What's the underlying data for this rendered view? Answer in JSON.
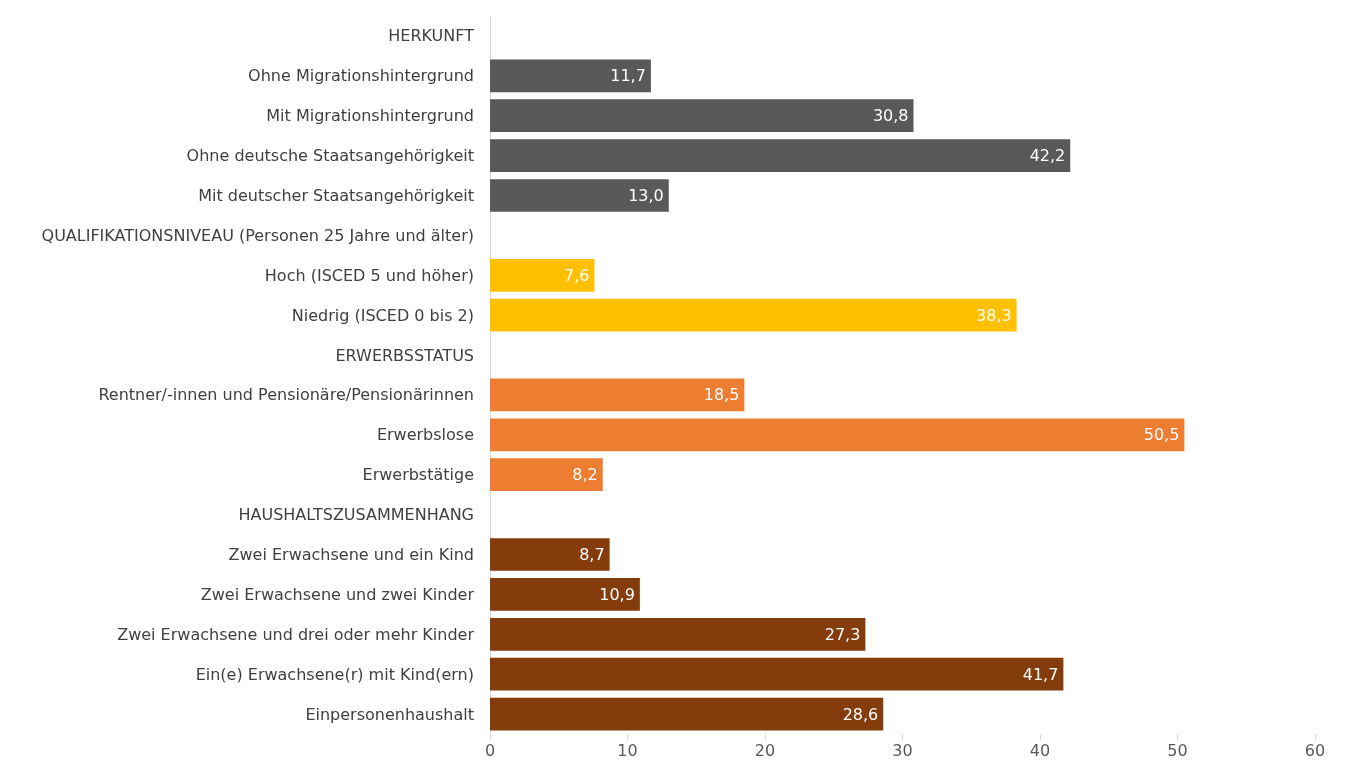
{
  "chart_data": {
    "type": "bar",
    "orientation": "horizontal",
    "categories": [
      "HERKUNFT",
      "Ohne Migrationshintergrund",
      "Mit Migrationshintergrund",
      "Ohne deutsche Staatsangehörigkeit",
      "Mit deutscher Staatsangehörigkeit",
      "QUALIFIKATIONSNIVEAU (Personen 25 Jahre und älter)",
      "Hoch (ISCED 5 und höher)",
      "Niedrig (ISCED 0 bis 2)",
      "ERWERBSSTATUS",
      "Rentner/-innen und Pensionäre/Pensionärinnen",
      "Erwerbslose",
      "Erwerbstätige",
      "HAUSHALTSZUSAMMENHANG",
      "Zwei Erwachsene und ein Kind",
      "Zwei Erwachsene und zwei Kinder",
      "Zwei Erwachsene und drei oder mehr Kinder",
      "Ein(e) Erwachsene(r) mit Kind(ern)",
      "Einpersonenhaushalt"
    ],
    "values": [
      null,
      11.7,
      30.8,
      42.2,
      13.0,
      null,
      7.6,
      38.3,
      null,
      18.5,
      50.5,
      8.2,
      null,
      8.7,
      10.9,
      27.3,
      41.7,
      28.6
    ],
    "value_labels": [
      null,
      "11,7",
      "30,8",
      "42,2",
      "13,0",
      null,
      "7,6",
      "38,3",
      null,
      "18,5",
      "50,5",
      "8,2",
      null,
      "8,7",
      "10,9",
      "27,3",
      "41,7",
      "28,6"
    ],
    "colors": [
      null,
      "#595959",
      "#595959",
      "#595959",
      "#595959",
      null,
      "#ffc000",
      "#ffc000",
      null,
      "#ed7d31",
      "#ed7d31",
      "#ed7d31",
      null,
      "#843c0c",
      "#843c0c",
      "#843c0c",
      "#843c0c",
      "#843c0c"
    ],
    "xlim": [
      0,
      60
    ],
    "xticks": [
      0,
      10,
      20,
      30,
      40,
      50,
      60
    ],
    "grid": false
  }
}
